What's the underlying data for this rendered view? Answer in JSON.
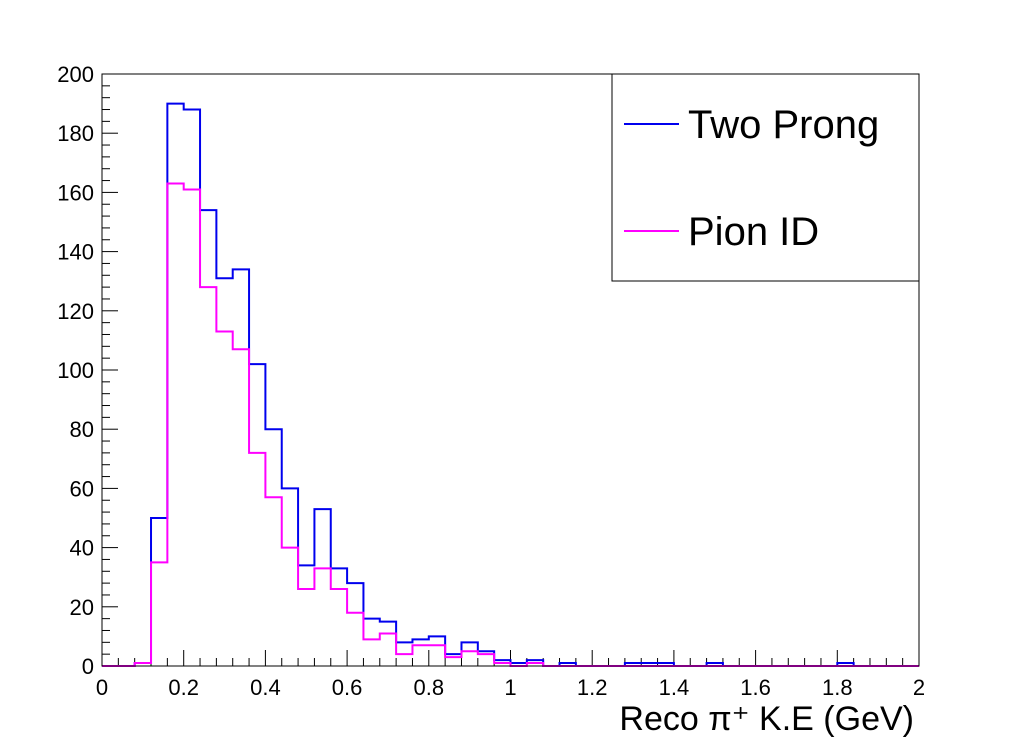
{
  "chart_data": {
    "type": "histogram",
    "title": "",
    "xlabel": "Reco π⁺ K.E (GeV)",
    "ylabel": "",
    "xlim": [
      0,
      2
    ],
    "ylim": [
      0,
      200
    ],
    "x_ticks": [
      "0",
      "0.2",
      "0.4",
      "0.6",
      "0.8",
      "1",
      "1.2",
      "1.4",
      "1.6",
      "1.8",
      "2"
    ],
    "y_ticks": [
      "0",
      "20",
      "40",
      "60",
      "80",
      "100",
      "120",
      "140",
      "160",
      "180",
      "200"
    ],
    "bin_width": 0.04,
    "bin_edges_start": 0,
    "grid": false,
    "legend_position": "top-right",
    "series": [
      {
        "name": "Two Prong",
        "color": "#0000ee",
        "values": [
          0,
          0,
          1,
          50,
          190,
          188,
          154,
          131,
          134,
          102,
          80,
          60,
          34,
          53,
          33,
          28,
          16,
          15,
          8,
          9,
          10,
          4,
          8,
          5,
          2,
          1,
          2,
          0,
          1,
          0,
          0,
          0,
          1,
          1,
          1,
          0,
          0,
          1,
          0,
          0,
          0,
          0,
          0,
          0,
          0,
          1,
          0,
          0,
          0,
          0
        ]
      },
      {
        "name": "Pion ID",
        "color": "#ff00ff",
        "values": [
          0,
          0,
          1,
          35,
          163,
          161,
          128,
          113,
          107,
          72,
          57,
          40,
          26,
          33,
          26,
          18,
          9,
          11,
          4,
          7,
          7,
          3,
          5,
          4,
          1,
          0,
          1,
          0,
          0,
          0,
          0,
          0,
          0,
          0,
          0,
          0,
          0,
          0,
          0,
          0,
          0,
          0,
          0,
          0,
          0,
          0,
          0,
          0,
          0,
          0
        ]
      }
    ]
  }
}
